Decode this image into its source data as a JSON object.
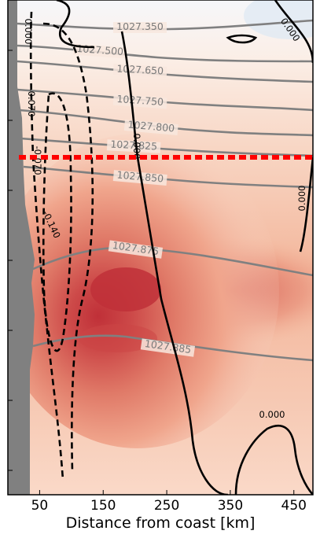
{
  "chart_data": {
    "type": "contour",
    "xlabel": "Distance from coast [km]",
    "xlim": [
      0,
      480
    ],
    "x_ticks": [
      50,
      150,
      250,
      350,
      450
    ],
    "ylabel": "",
    "coast_land_color": "#808080",
    "shading_colors": {
      "low": "#ffffff",
      "high": "#c03038",
      "negative": "#dde8f4"
    },
    "core_depth_fraction": 0.44,
    "density_isopycnals": [
      {
        "label": "1027.350",
        "value": 1027.35
      },
      {
        "label": "1027.500",
        "value": 1027.5
      },
      {
        "label": "1027.650",
        "value": 1027.65
      },
      {
        "label": "1027.750",
        "value": 1027.75
      },
      {
        "label": "1027.800",
        "value": 1027.8
      },
      {
        "label": "1027.825",
        "value": 1027.825
      },
      {
        "label": "1027.850",
        "value": 1027.85
      },
      {
        "label": "1027.875",
        "value": 1027.875
      },
      {
        "label": "1027.885",
        "value": 1027.885
      }
    ],
    "velocity_contours": [
      {
        "label": "0.000",
        "value": 0.0
      },
      {
        "label": "0.000",
        "value": 0.0
      },
      {
        "label": "0.000",
        "value": 0.0
      },
      {
        "label": "0.000",
        "value": 0.0
      },
      {
        "label": "0.000",
        "value": 0.0
      },
      {
        "label": "-0.070",
        "value": -0.07
      },
      {
        "label": "-0.070",
        "value": -0.07
      },
      {
        "label": "-0.140",
        "value": -0.14
      }
    ],
    "reference_line": {
      "style": "dashed",
      "color": "#ff0000",
      "depth_fraction": 0.31
    }
  }
}
